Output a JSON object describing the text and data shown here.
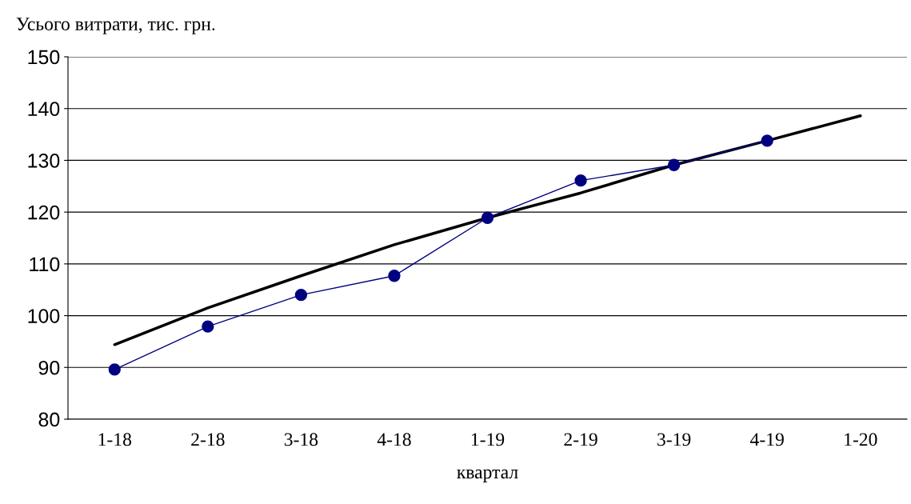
{
  "chart_data": {
    "type": "line",
    "ylabel": "Усього витрати, тис. грн.",
    "xlabel": "квартал",
    "categories": [
      "1-18",
      "2-18",
      "3-18",
      "4-18",
      "1-19",
      "2-19",
      "3-19",
      "4-19",
      "1-20"
    ],
    "series": [
      {
        "color": "#000080",
        "marker": "circle",
        "values": [
          89.6,
          97.9,
          104.0,
          107.7,
          118.9,
          126.1,
          129.1,
          133.8,
          null
        ]
      },
      {
        "color": "#000000",
        "marker": "none",
        "values": [
          94.4,
          101.5,
          107.7,
          113.7,
          118.9,
          123.7,
          129.1,
          133.8,
          138.6
        ]
      }
    ],
    "ylim": [
      80,
      150
    ],
    "yticks": [
      80,
      90,
      100,
      110,
      120,
      130,
      140,
      150
    ],
    "grid": "y",
    "legend": false
  }
}
